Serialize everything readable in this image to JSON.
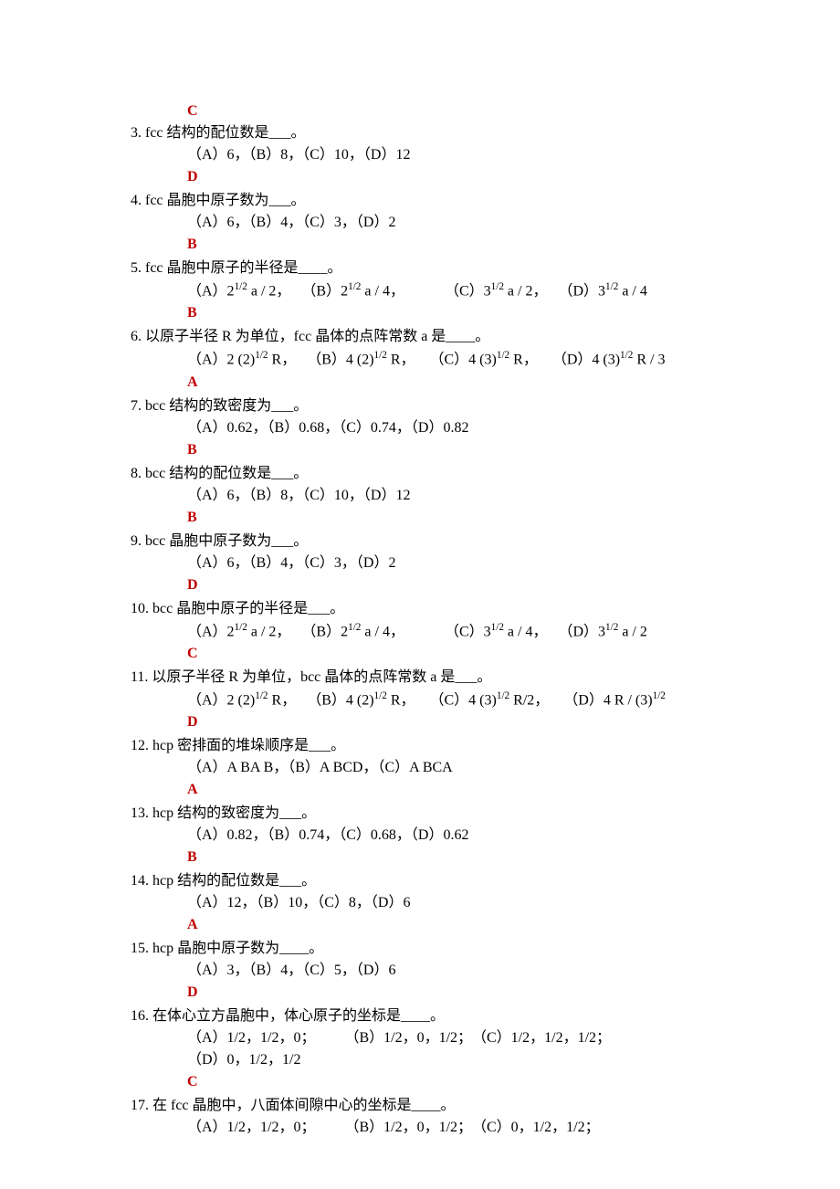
{
  "colors": {
    "text": "#000000",
    "answer": "#c00000",
    "background": "#ffffff"
  },
  "typography": {
    "font_family": "SimSun, Times New Roman, serif",
    "base_fontsize": 16,
    "line_height": 1.5
  },
  "first_answer": "C",
  "questions": [
    {
      "num": "3.",
      "text": "fcc 结构的配位数是___。",
      "opts": "（A）6，（B）8，（C）10，（D）12",
      "ans": "D"
    },
    {
      "num": "4.",
      "text": "fcc 晶胞中原子数为___。",
      "opts": "（A）6，（B）4，（C）3，（D）2",
      "ans": "B"
    },
    {
      "num": "5.",
      "text": "fcc 晶胞中原子的半径是____。",
      "opts_html": "（A）2<sup>1/2</sup> a / 2，&nbsp;&nbsp;&nbsp;（B）2<sup>1/2</sup> a / 4，&nbsp;&nbsp;&nbsp;&nbsp;&nbsp;&nbsp;&nbsp;&nbsp;&nbsp;&nbsp;&nbsp;（C）3<sup>1/2</sup> a / 2，&nbsp;&nbsp;&nbsp;（D）3<sup>1/2</sup> a / 4",
      "ans": "B"
    },
    {
      "num": "6.",
      "text": "以原子半径 R 为单位，fcc 晶体的点阵常数 a 是____。",
      "opts_html": "（A）2 (2)<sup>1/2</sup> R，&nbsp;&nbsp;&nbsp;（B）4 (2)<sup>1/2</sup> R，&nbsp;&nbsp;&nbsp;&nbsp;（C）4 (3)<sup>1/2</sup> R，&nbsp;&nbsp;&nbsp;&nbsp;（D）4 (3)<sup>1/2</sup> R / 3",
      "ans": "A"
    },
    {
      "num": "7.",
      "text": "bcc 结构的致密度为___。",
      "opts": "（A）0.62，（B）0.68，（C）0.74，（D）0.82",
      "ans": "B"
    },
    {
      "num": "8.",
      "text": "bcc 结构的配位数是___。",
      "opts": "（A）6，（B）8，（C）10，（D）12",
      "ans": "B"
    },
    {
      "num": "9.",
      "text": "bcc 晶胞中原子数为___。",
      "opts": "（A）6，（B）4，（C）3，（D）2",
      "ans": "D"
    },
    {
      "num": "10.",
      "text": "bcc 晶胞中原子的半径是___。",
      "opts_html": "（A）2<sup>1/2</sup> a / 2，&nbsp;&nbsp;&nbsp;（B）2<sup>1/2</sup> a / 4，&nbsp;&nbsp;&nbsp;&nbsp;&nbsp;&nbsp;&nbsp;&nbsp;&nbsp;&nbsp;&nbsp;（C）3<sup>1/2</sup> a / 4，&nbsp;&nbsp;&nbsp;（D）3<sup>1/2</sup> a / 2",
      "ans": "C"
    },
    {
      "num": "11.",
      "text": "以原子半径 R 为单位，bcc 晶体的点阵常数 a 是___。",
      "opts_html": "（A）2 (2)<sup>1/2</sup> R，&nbsp;&nbsp;&nbsp;（B）4 (2)<sup>1/2</sup> R，&nbsp;&nbsp;&nbsp;&nbsp;（C）4 (3)<sup>1/2</sup> R/2，&nbsp;&nbsp;&nbsp;&nbsp;（D）4 R / (3)<sup>1/2</sup>",
      "ans": "D"
    },
    {
      "num": "12.",
      "text": "hcp 密排面的堆垛顺序是___。",
      "opts": "（A）A BA B，（B）A BCD，（C）A BCA",
      "ans": "A"
    },
    {
      "num": "13.",
      "text": "hcp 结构的致密度为___。",
      "opts": "（A）0.82，（B）0.74，（C）0.68，（D）0.62",
      "ans": "B"
    },
    {
      "num": "14.",
      "text": "hcp  结构的配位数是___。",
      "opts": "（A）12，（B）10，（C）8，（D）6",
      "ans": "A"
    },
    {
      "num": "15.",
      "text": "hcp 晶胞中原子数为____。",
      "opts": "（A）3，（B）4，（C）5，（D）6",
      "ans": "D"
    },
    {
      "num": "16.",
      "text": "在体心立方晶胞中，体心原子的坐标是____。",
      "opts_lines": [
        "（A）1/2，1/2，0；　　　（B）1/2，0，1/2；　（C）1/2，1/2，1/2；",
        "（D）0，1/2，1/2"
      ],
      "ans": "C"
    },
    {
      "num": "17.",
      "text": "在 fcc 晶胞中，八面体间隙中心的坐标是____。",
      "opts_lines": [
        "（A）1/2，1/2，0；　　　（B）1/2，0，1/2；　（C）0，1/2，1/2；"
      ]
    }
  ]
}
